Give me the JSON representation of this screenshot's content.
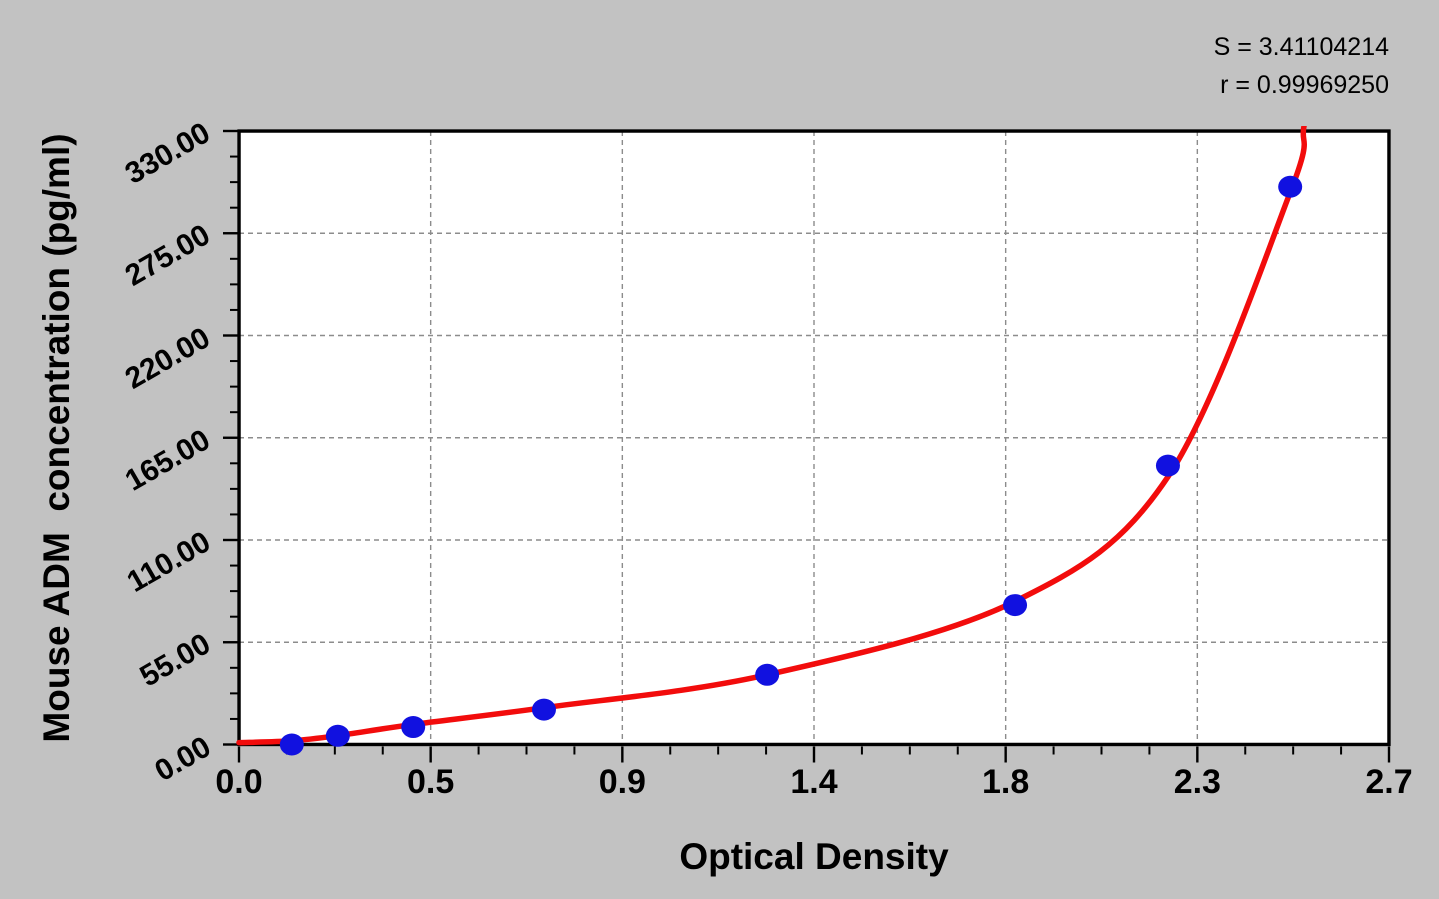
{
  "annotation": {
    "s_line": "S = 3.41104214",
    "r_line": "r = 0.99969250"
  },
  "colors": {
    "background": "#c2c2c2",
    "plot_background": "#ffffff",
    "curve": "#f20c0c",
    "marker": "#1111e0",
    "grid": "#8c8c8c",
    "axis": "#000000"
  },
  "chart_data": {
    "type": "scatter",
    "title": "",
    "xlabel": "Optical Density",
    "ylabel": "Mouse ADM  concentration (pg/ml)",
    "xlim": [
      0,
      2.7
    ],
    "ylim": [
      0,
      330
    ],
    "x_major_ticks": [
      0,
      0.45,
      0.9,
      1.35,
      1.8,
      2.25,
      2.7
    ],
    "x_tick_labels": [
      "0.0",
      "0.5",
      "0.9",
      "1.4",
      "1.8",
      "2.3",
      "2.7"
    ],
    "y_major_ticks": [
      0,
      55,
      110,
      165,
      220,
      275,
      330
    ],
    "y_tick_labels": [
      "0.00",
      "55.00",
      "110.00",
      "165.00",
      "220.00",
      "275.00",
      "330.00"
    ],
    "minor_tick_divisions": 4,
    "grid": {
      "style": "dashed",
      "at": "major-ticks"
    },
    "legend": "none",
    "series": [
      {
        "name": "standard-points",
        "marker": "circle",
        "points": [
          {
            "od": 0.124,
            "conc": 0
          },
          {
            "od": 0.232,
            "conc": 4.69
          },
          {
            "od": 0.409,
            "conc": 9.38
          },
          {
            "od": 0.716,
            "conc": 18.75
          },
          {
            "od": 1.24,
            "conc": 37.5
          },
          {
            "od": 1.822,
            "conc": 75
          },
          {
            "od": 2.181,
            "conc": 150
          },
          {
            "od": 2.468,
            "conc": 300
          }
        ]
      }
    ],
    "fit_curve": {
      "S": 3.41104214,
      "r": 0.9996925,
      "anchors_od_conc": [
        [
          0,
          1
        ],
        [
          0.124,
          2
        ],
        [
          0.232,
          4.8
        ],
        [
          0.409,
          10.8
        ],
        [
          0.716,
          19.8
        ],
        [
          1.24,
          37.5
        ],
        [
          1.822,
          77
        ],
        [
          2.181,
          144
        ],
        [
          2.468,
          297
        ],
        [
          2.5,
          332
        ],
        [
          2.515,
          358
        ]
      ]
    }
  }
}
